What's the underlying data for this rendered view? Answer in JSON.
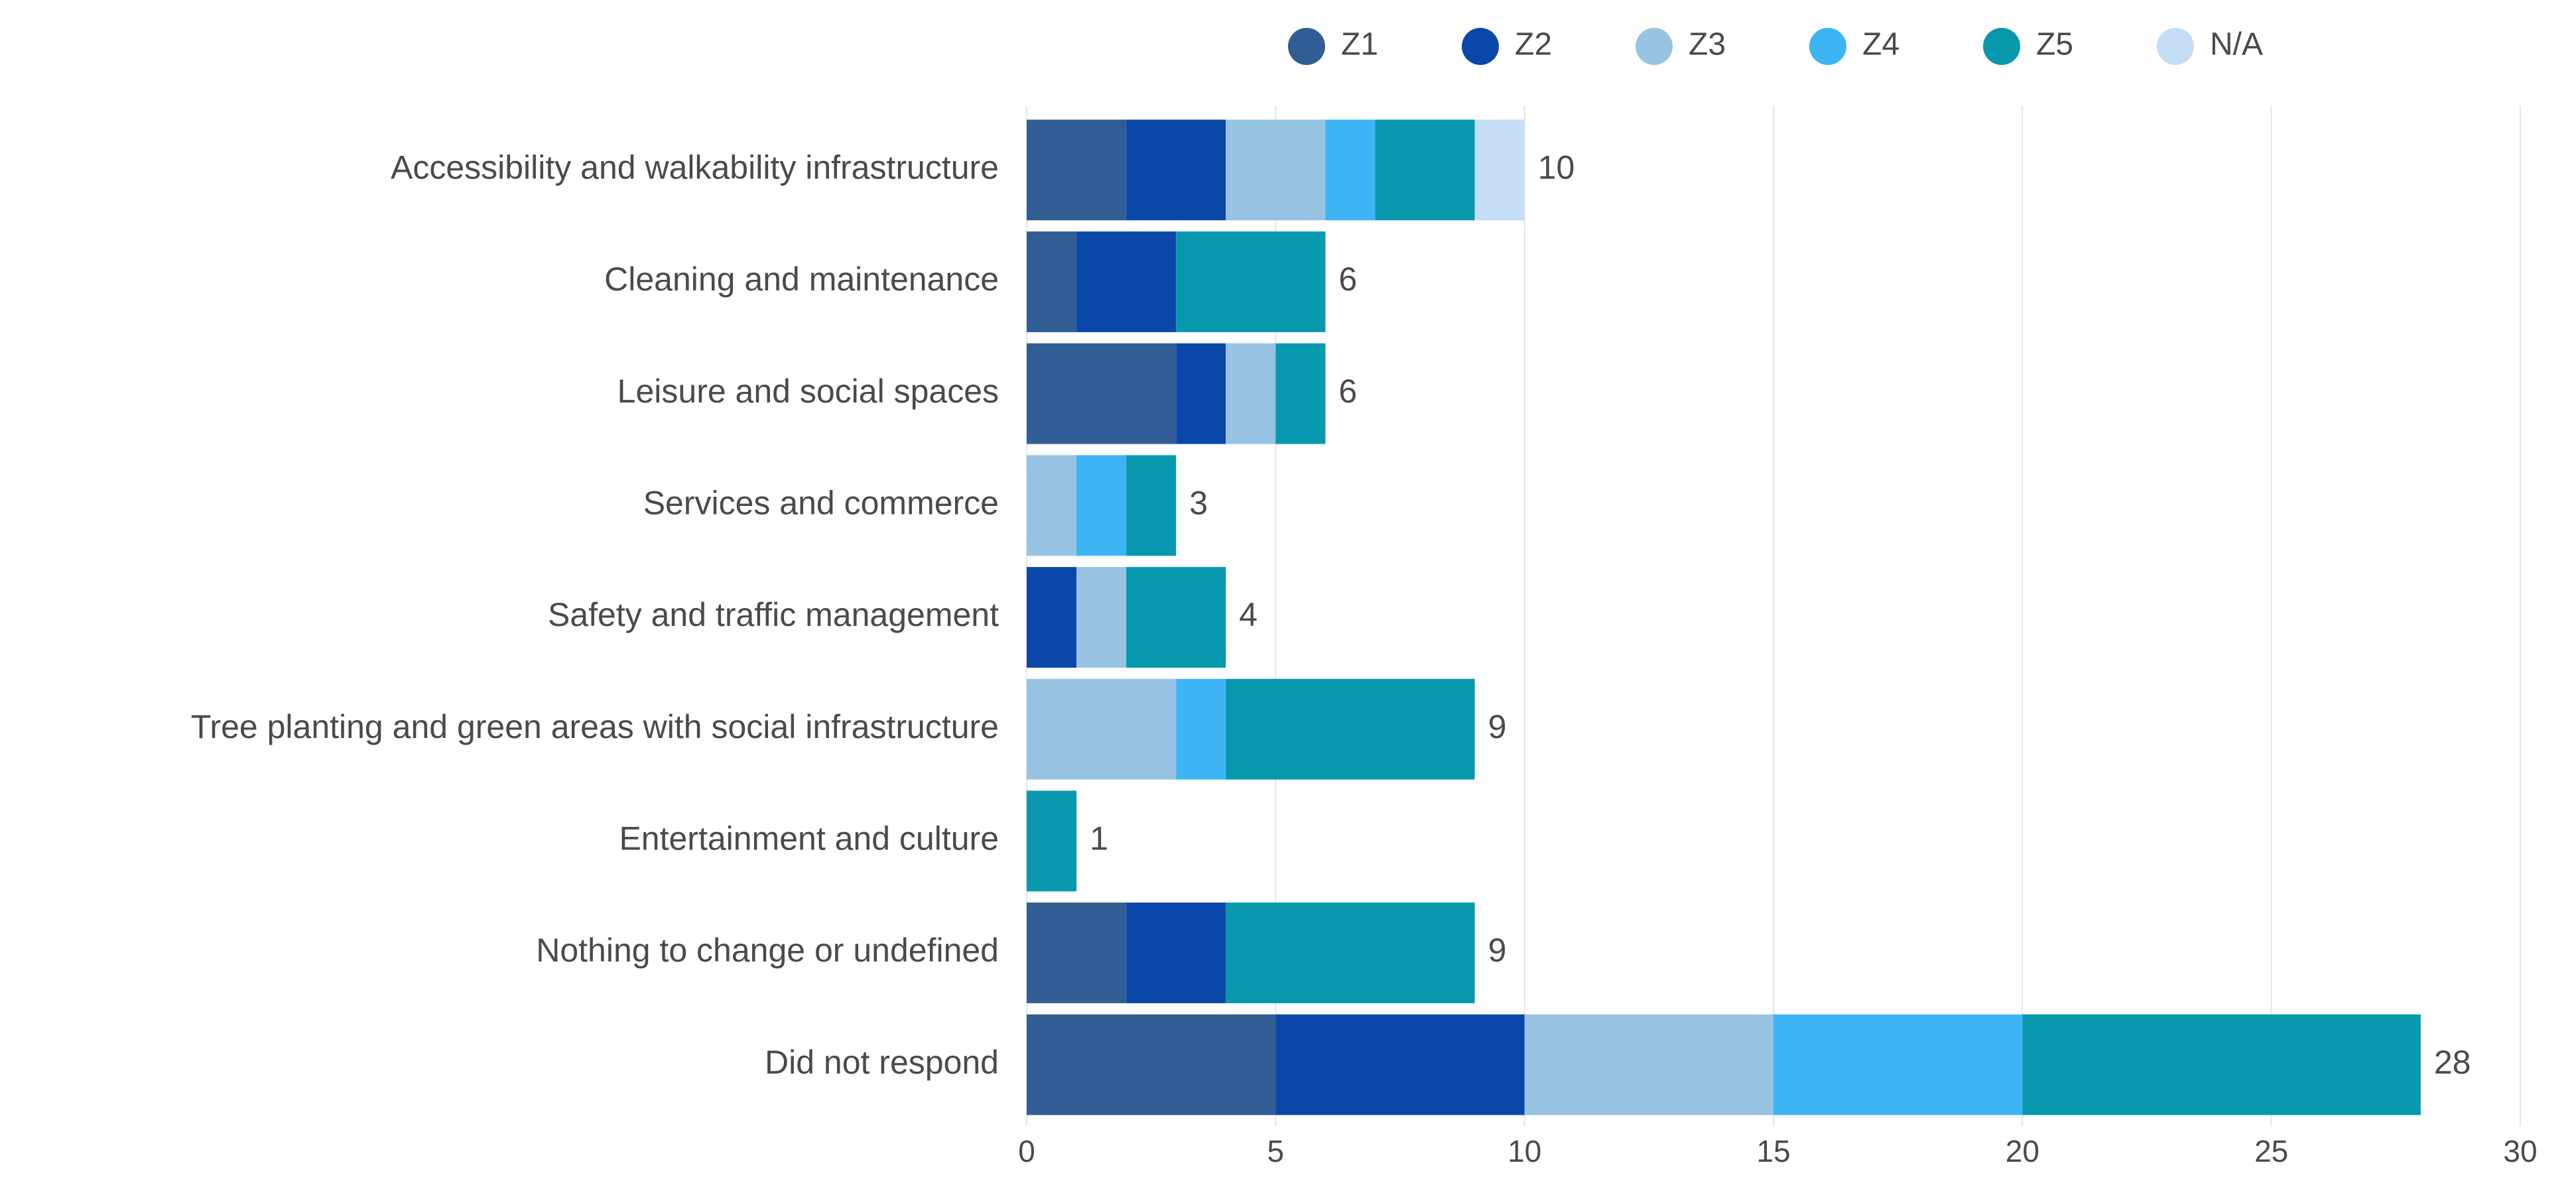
{
  "chart_data": {
    "type": "bar",
    "orientation": "horizontal",
    "stacked": true,
    "categories": [
      "Accessibility and walkability infrastructure",
      "Cleaning and maintenance",
      "Leisure and social spaces",
      "Services and commerce",
      "Safety and traffic management",
      "Tree planting and green areas with social infrastructure",
      "Entertainment and culture",
      "Nothing to change or undefined",
      "Did not respond"
    ],
    "series": [
      {
        "name": "Z1",
        "color": "#2f5d94",
        "values": [
          2,
          1,
          3,
          0,
          0,
          0,
          0,
          2,
          5
        ]
      },
      {
        "name": "Z2",
        "color": "#0a47a8",
        "values": [
          2,
          2,
          1,
          0,
          1,
          0,
          0,
          2,
          5
        ]
      },
      {
        "name": "Z3",
        "color": "#98c3e2",
        "values": [
          2,
          0,
          1,
          1,
          1,
          3,
          0,
          0,
          5
        ]
      },
      {
        "name": "Z4",
        "color": "#3db5f5",
        "values": [
          1,
          0,
          0,
          1,
          0,
          1,
          0,
          0,
          5
        ]
      },
      {
        "name": "Z5",
        "color": "#0798ae",
        "values": [
          2,
          3,
          1,
          1,
          2,
          5,
          1,
          5,
          8
        ]
      },
      {
        "name": "N/A",
        "color": "#c6ddf6",
        "values": [
          1,
          0,
          0,
          0,
          0,
          0,
          0,
          0,
          0
        ]
      }
    ],
    "totals": [
      "10",
      "6",
      "6",
      "3",
      "4",
      "9",
      "1",
      "9",
      "28"
    ],
    "xlim": [
      0,
      30
    ],
    "xticks": [
      "0",
      "5",
      "10",
      "15",
      "20",
      "25",
      "30"
    ],
    "grid": true,
    "legend_position": "top"
  }
}
